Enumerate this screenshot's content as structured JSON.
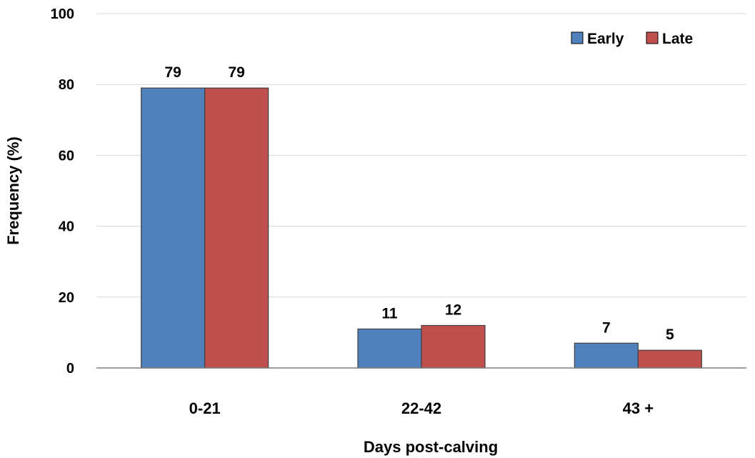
{
  "chart_data": {
    "type": "bar",
    "categories": [
      "0-21",
      "22-42",
      "43 +"
    ],
    "series": [
      {
        "name": "Early",
        "values": [
          79,
          11,
          7
        ],
        "color": "#4F81BD"
      },
      {
        "name": "Late",
        "values": [
          79,
          12,
          5
        ],
        "color": "#C0504D"
      }
    ],
    "xlabel": "Days post-calving",
    "ylabel": "Frequency (%)",
    "ylim": [
      0,
      100
    ],
    "yticks": [
      0,
      20,
      40,
      60,
      80,
      100
    ],
    "grid": true,
    "legend_position": "top-right"
  }
}
